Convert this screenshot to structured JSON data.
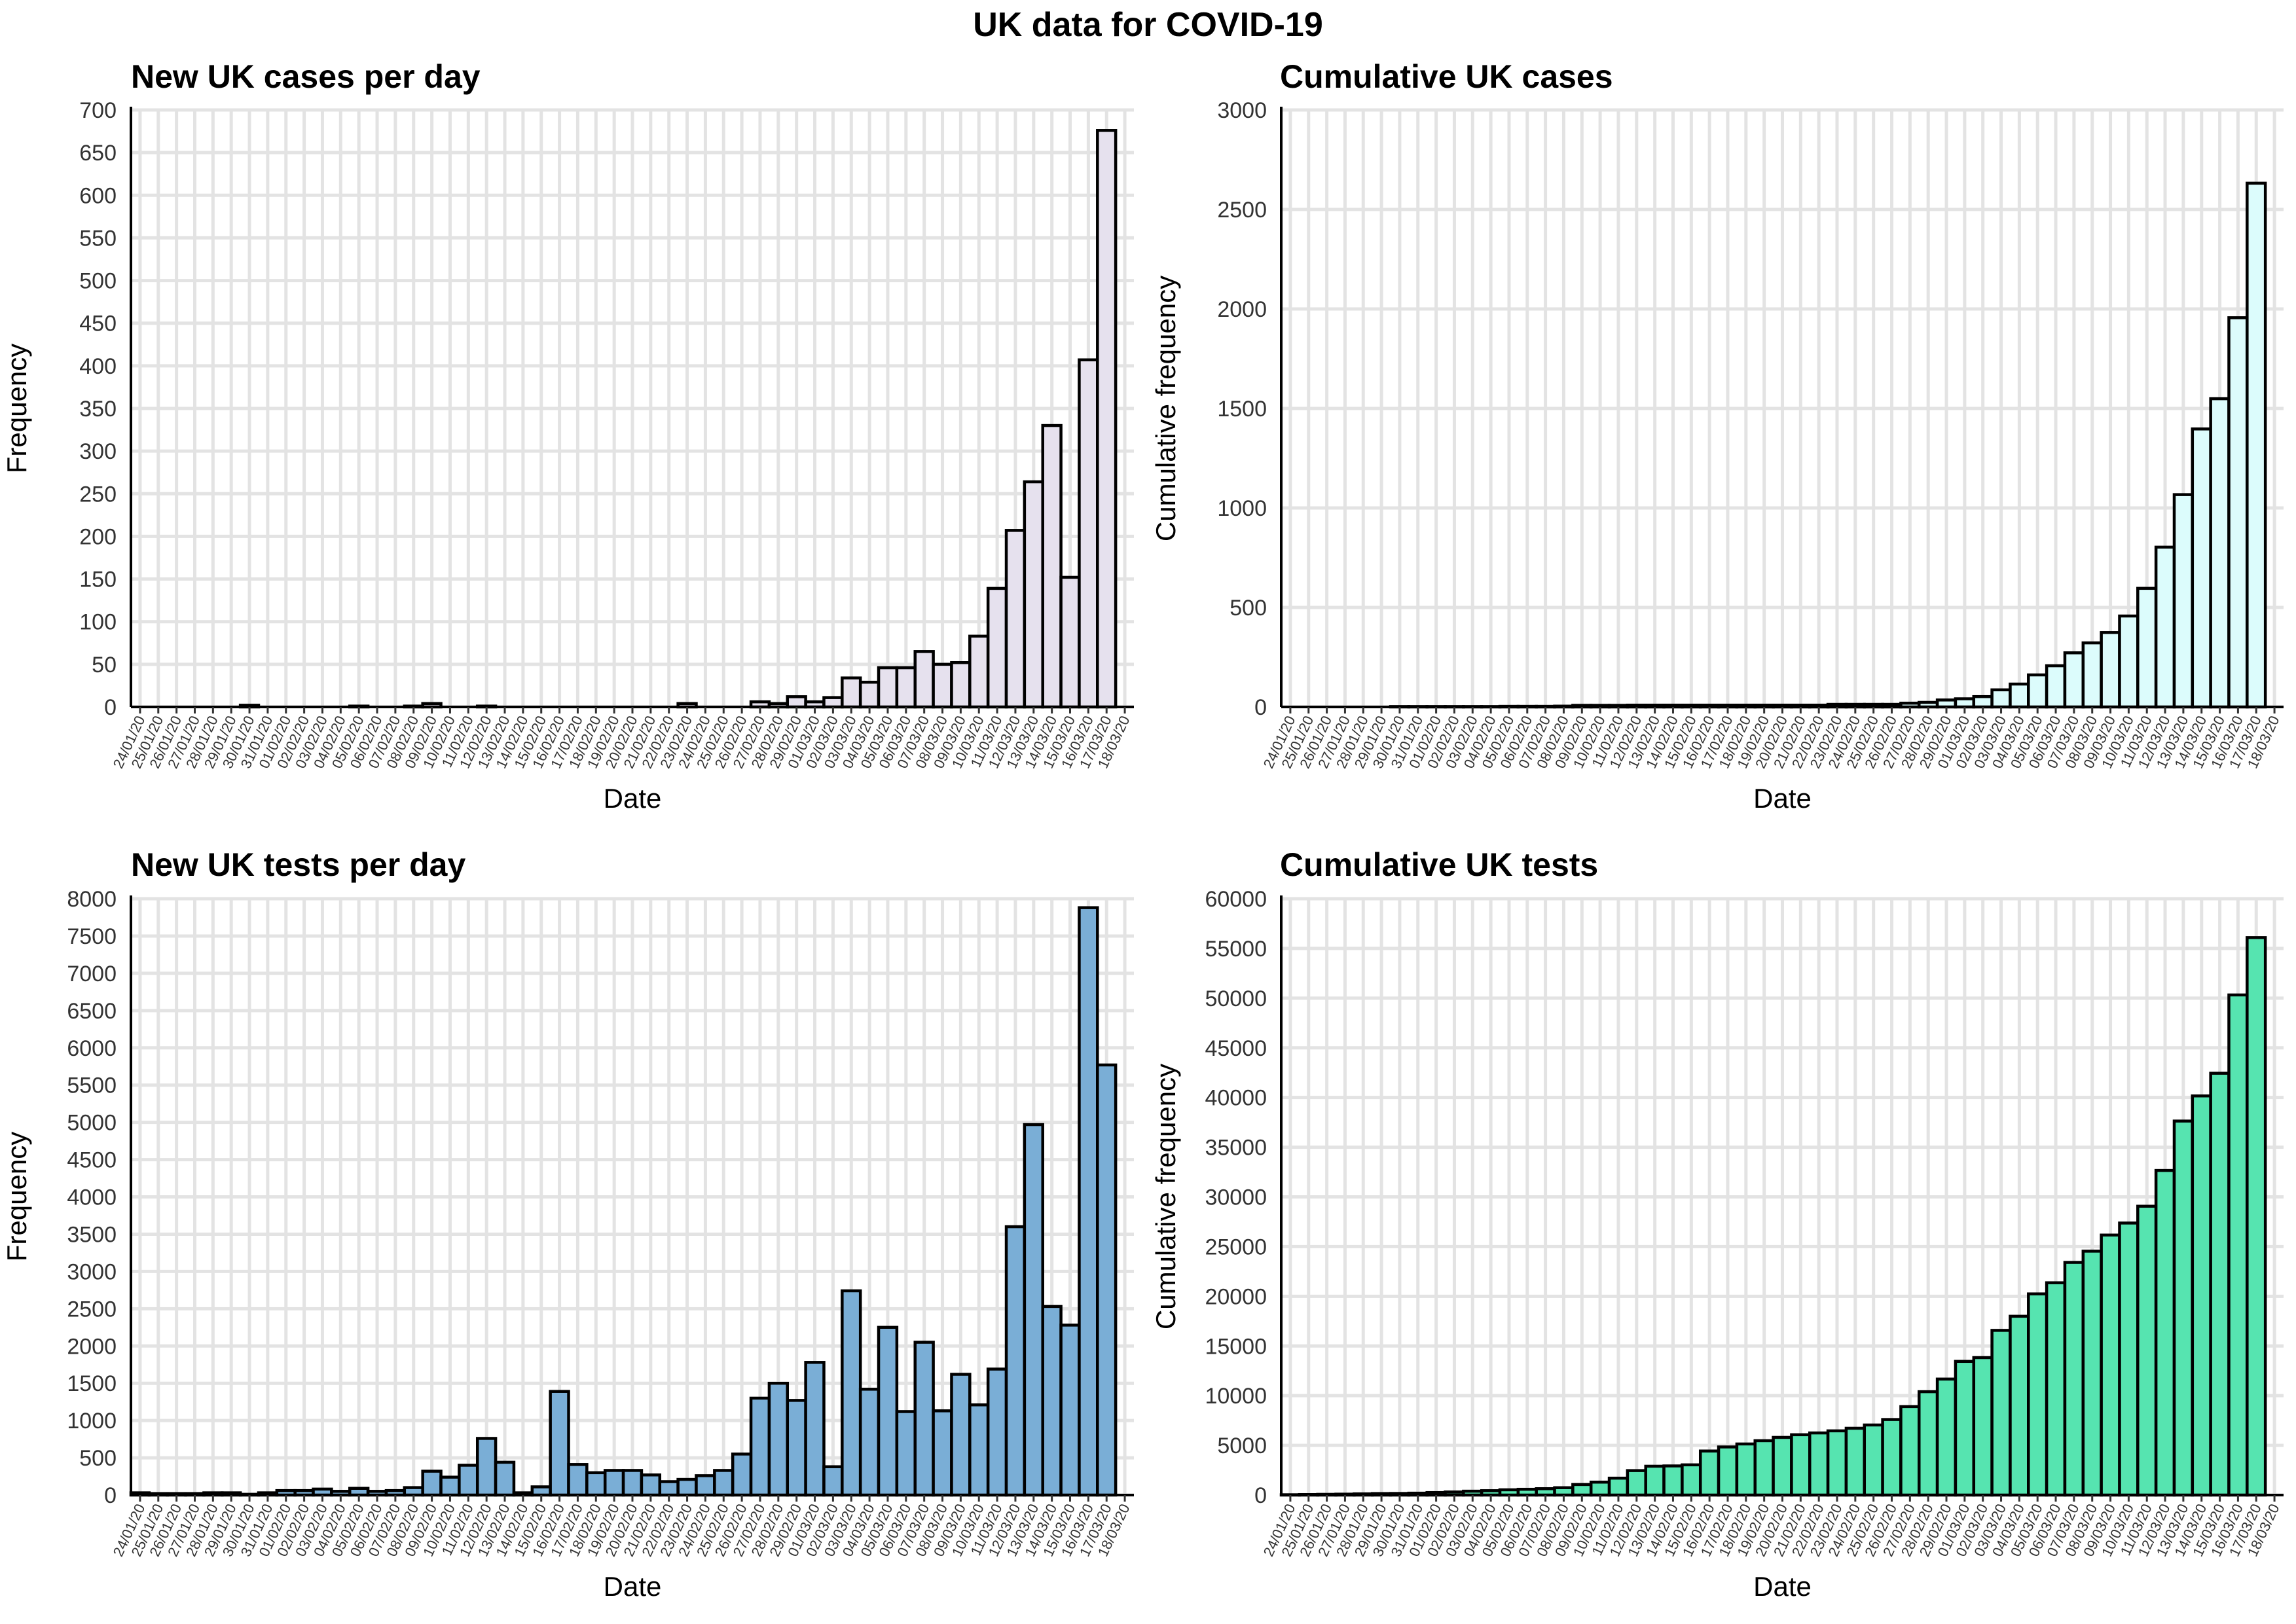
{
  "title": "UK data for COVID-19",
  "chart_data": [
    {
      "type": "bar",
      "title": "New UK cases per day",
      "xlabel": "Date",
      "ylabel": "Frequency",
      "ylim": [
        0,
        700
      ],
      "ytick_step": 50,
      "color": "#e6e1ee",
      "grid": true,
      "categories": [
        "24/01/20",
        "25/01/20",
        "26/01/20",
        "27/01/20",
        "28/01/20",
        "29/01/20",
        "30/01/20",
        "31/01/20",
        "01/02/20",
        "02/02/20",
        "03/02/20",
        "04/02/20",
        "05/02/20",
        "06/02/20",
        "07/02/20",
        "08/02/20",
        "09/02/20",
        "10/02/20",
        "11/02/20",
        "12/02/20",
        "13/02/20",
        "14/02/20",
        "15/02/20",
        "16/02/20",
        "17/02/20",
        "18/02/20",
        "19/02/20",
        "20/02/20",
        "21/02/20",
        "22/02/20",
        "23/02/20",
        "24/02/20",
        "25/02/20",
        "26/02/20",
        "27/02/20",
        "28/02/20",
        "29/02/20",
        "01/03/20",
        "02/03/20",
        "03/03/20",
        "04/03/20",
        "05/03/20",
        "06/03/20",
        "07/03/20",
        "08/03/20",
        "09/03/20",
        "10/03/20",
        "11/03/20",
        "12/03/20",
        "13/03/20",
        "14/03/20",
        "15/03/20",
        "16/03/20",
        "17/03/20",
        "18/03/20"
      ],
      "values": [
        0,
        0,
        0,
        0,
        0,
        0,
        2,
        0,
        0,
        0,
        0,
        0,
        1,
        0,
        0,
        1,
        4,
        0,
        0,
        1,
        0,
        0,
        0,
        0,
        0,
        0,
        0,
        0,
        0,
        0,
        4,
        0,
        0,
        0,
        6,
        4,
        12,
        6,
        11,
        34,
        29,
        46,
        46,
        65,
        50,
        52,
        83,
        139,
        207,
        264,
        330,
        152,
        407,
        676,
        0
      ]
    },
    {
      "type": "bar",
      "title": "Cumulative UK cases",
      "xlabel": "Date",
      "ylabel": "Cumulative frequency",
      "ylim": [
        0,
        3000
      ],
      "ytick_step": 500,
      "color": "#dcfcfc",
      "grid": true,
      "categories": [
        "24/01/20",
        "25/01/20",
        "26/01/20",
        "27/01/20",
        "28/01/20",
        "29/01/20",
        "30/01/20",
        "31/01/20",
        "01/02/20",
        "02/02/20",
        "03/02/20",
        "04/02/20",
        "05/02/20",
        "06/02/20",
        "07/02/20",
        "08/02/20",
        "09/02/20",
        "10/02/20",
        "11/02/20",
        "12/02/20",
        "13/02/20",
        "14/02/20",
        "15/02/20",
        "16/02/20",
        "17/02/20",
        "18/02/20",
        "19/02/20",
        "20/02/20",
        "21/02/20",
        "22/02/20",
        "23/02/20",
        "24/02/20",
        "25/02/20",
        "26/02/20",
        "27/02/20",
        "28/02/20",
        "29/02/20",
        "01/03/20",
        "02/03/20",
        "03/03/20",
        "04/03/20",
        "05/03/20",
        "06/03/20",
        "07/03/20",
        "08/03/20",
        "09/03/20",
        "10/03/20",
        "11/03/20",
        "12/03/20",
        "13/03/20",
        "14/03/20",
        "15/03/20",
        "16/03/20",
        "17/03/20",
        "18/03/20"
      ],
      "values": [
        0,
        0,
        0,
        0,
        0,
        0,
        2,
        2,
        2,
        2,
        2,
        2,
        3,
        3,
        3,
        4,
        8,
        8,
        8,
        9,
        9,
        9,
        9,
        9,
        9,
        9,
        9,
        9,
        9,
        9,
        13,
        13,
        13,
        13,
        19,
        23,
        35,
        41,
        52,
        86,
        115,
        161,
        207,
        272,
        322,
        374,
        457,
        596,
        803,
        1067,
        1397,
        1549,
        1956,
        2632,
        0
      ]
    },
    {
      "type": "bar",
      "title": "New UK tests per day",
      "xlabel": "Date",
      "ylabel": "Frequency",
      "ylim": [
        0,
        8000
      ],
      "ytick_step": 500,
      "color": "#7aaed6",
      "grid": true,
      "categories": [
        "24/01/20",
        "25/01/20",
        "26/01/20",
        "27/01/20",
        "28/01/20",
        "29/01/20",
        "30/01/20",
        "31/01/20",
        "01/02/20",
        "02/02/20",
        "03/02/20",
        "04/02/20",
        "05/02/20",
        "06/02/20",
        "07/02/20",
        "08/02/20",
        "09/02/20",
        "10/02/20",
        "11/02/20",
        "12/02/20",
        "13/02/20",
        "14/02/20",
        "15/02/20",
        "16/02/20",
        "17/02/20",
        "18/02/20",
        "19/02/20",
        "20/02/20",
        "21/02/20",
        "22/02/20",
        "23/02/20",
        "24/02/20",
        "25/02/20",
        "26/02/20",
        "27/02/20",
        "28/02/20",
        "29/02/20",
        "01/03/20",
        "02/03/20",
        "03/03/20",
        "04/03/20",
        "05/03/20",
        "06/03/20",
        "07/03/20",
        "08/03/20",
        "09/03/20",
        "10/03/20",
        "11/03/20",
        "12/03/20",
        "13/03/20",
        "14/03/20",
        "15/03/20",
        "16/03/20",
        "17/03/20",
        "18/03/20"
      ],
      "values": [
        30,
        20,
        20,
        20,
        30,
        30,
        10,
        30,
        60,
        60,
        80,
        50,
        90,
        50,
        60,
        100,
        320,
        240,
        400,
        760,
        440,
        30,
        110,
        1390,
        410,
        300,
        330,
        330,
        270,
        180,
        210,
        260,
        330,
        550,
        1300,
        1500,
        1270,
        1780,
        380,
        2740,
        1420,
        2250,
        1120,
        2050,
        1130,
        1620,
        1210,
        1690,
        3600,
        4970,
        2530,
        2280,
        7880,
        5770,
        0
      ]
    },
    {
      "type": "bar",
      "title": "Cumulative UK tests",
      "xlabel": "Date",
      "ylabel": "Cumulative frequency",
      "ylim": [
        0,
        60000
      ],
      "ytick_step": 5000,
      "color": "#56e4b0",
      "grid": true,
      "categories": [
        "24/01/20",
        "25/01/20",
        "26/01/20",
        "27/01/20",
        "28/01/20",
        "29/01/20",
        "30/01/20",
        "31/01/20",
        "01/02/20",
        "02/02/20",
        "03/02/20",
        "04/02/20",
        "05/02/20",
        "06/02/20",
        "07/02/20",
        "08/02/20",
        "09/02/20",
        "10/02/20",
        "11/02/20",
        "12/02/20",
        "13/02/20",
        "14/02/20",
        "15/02/20",
        "16/02/20",
        "17/02/20",
        "18/02/20",
        "19/02/20",
        "20/02/20",
        "21/02/20",
        "22/02/20",
        "23/02/20",
        "24/02/20",
        "25/02/20",
        "26/02/20",
        "27/02/20",
        "28/02/20",
        "29/02/20",
        "01/03/20",
        "02/03/20",
        "03/03/20",
        "04/03/20",
        "05/03/20",
        "06/03/20",
        "07/03/20",
        "08/03/20",
        "09/03/20",
        "10/03/20",
        "11/03/20",
        "12/03/20",
        "13/03/20",
        "14/03/20",
        "15/03/20",
        "16/03/20",
        "17/03/20",
        "18/03/20"
      ],
      "values": [
        30,
        50,
        70,
        90,
        120,
        150,
        160,
        190,
        250,
        310,
        390,
        440,
        530,
        580,
        640,
        740,
        1060,
        1300,
        1700,
        2460,
        2900,
        2930,
        3040,
        4430,
        4840,
        5140,
        5470,
        5800,
        6070,
        6250,
        6460,
        6720,
        7050,
        7600,
        8900,
        10400,
        11670,
        13450,
        13830,
        16570,
        17990,
        20240,
        21360,
        23410,
        24540,
        26160,
        27370,
        29060,
        32660,
        37630,
        40160,
        42440,
        50320,
        56090,
        0
      ]
    }
  ]
}
